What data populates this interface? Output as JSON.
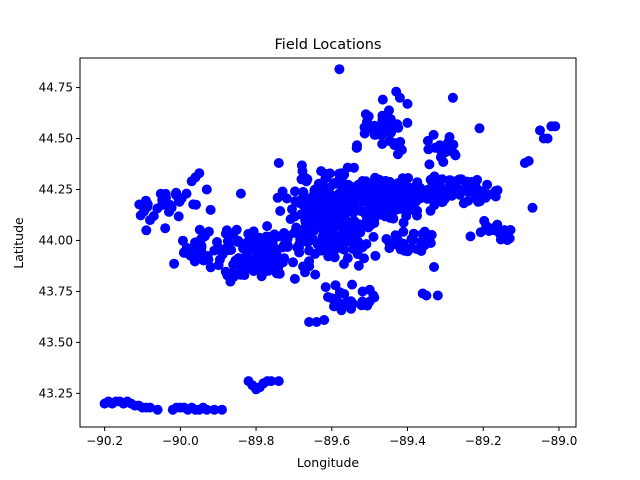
{
  "chart_data": {
    "type": "scatter",
    "title": "Field Locations",
    "xlabel": "Longitude",
    "ylabel": "Latitude",
    "xlim": [
      -90.265,
      -88.955
    ],
    "ylim": [
      43.085,
      44.895
    ],
    "xticks": [
      -90.2,
      -90.0,
      -89.8,
      -89.6,
      -89.4,
      -89.2,
      -89.0
    ],
    "xtick_labels": [
      "−90.2",
      "−90.0",
      "−89.8",
      "−89.6",
      "−89.4",
      "−89.2",
      "−89.0"
    ],
    "yticks": [
      43.25,
      43.5,
      43.75,
      44.0,
      44.25,
      44.5,
      44.75
    ],
    "ytick_labels": [
      "43.25",
      "43.50",
      "43.75",
      "44.00",
      "44.25",
      "44.50",
      "44.75"
    ],
    "grid": false,
    "marker_color": "#0000ff",
    "clusters": [
      {
        "center": [
          -89.6,
          44.12
        ],
        "spread": [
          0.09,
          0.16
        ],
        "n": 300
      },
      {
        "center": [
          -89.45,
          44.2
        ],
        "spread": [
          0.08,
          0.09
        ],
        "n": 160
      },
      {
        "center": [
          -89.27,
          44.25
        ],
        "spread": [
          0.08,
          0.06
        ],
        "n": 90
      },
      {
        "center": [
          -89.78,
          43.93
        ],
        "spread": [
          0.12,
          0.12
        ],
        "n": 130
      },
      {
        "center": [
          -89.47,
          44.55
        ],
        "spread": [
          0.06,
          0.08
        ],
        "n": 50
      },
      {
        "center": [
          -89.3,
          44.45
        ],
        "spread": [
          0.04,
          0.05
        ],
        "n": 20
      },
      {
        "center": [
          -89.95,
          43.95
        ],
        "spread": [
          0.05,
          0.07
        ],
        "n": 40
      },
      {
        "center": [
          -90.03,
          44.18
        ],
        "spread": [
          0.06,
          0.05
        ],
        "n": 30
      },
      {
        "center": [
          -89.55,
          43.72
        ],
        "spread": [
          0.05,
          0.05
        ],
        "n": 25
      },
      {
        "center": [
          -89.39,
          44.0
        ],
        "spread": [
          0.06,
          0.05
        ],
        "n": 30
      },
      {
        "center": [
          -89.18,
          44.05
        ],
        "spread": [
          0.05,
          0.04
        ],
        "n": 15
      }
    ],
    "points": [
      [
        -90.2,
        43.2
      ],
      [
        -90.19,
        43.21
      ],
      [
        -90.18,
        43.2
      ],
      [
        -90.17,
        43.21
      ],
      [
        -90.16,
        43.21
      ],
      [
        -90.15,
        43.2
      ],
      [
        -90.14,
        43.21
      ],
      [
        -90.13,
        43.2
      ],
      [
        -90.12,
        43.19
      ],
      [
        -90.11,
        43.19
      ],
      [
        -90.1,
        43.18
      ],
      [
        -90.09,
        43.18
      ],
      [
        -90.08,
        43.18
      ],
      [
        -90.06,
        43.17
      ],
      [
        -90.02,
        43.17
      ],
      [
        -90.01,
        43.18
      ],
      [
        -90.0,
        43.18
      ],
      [
        -89.99,
        43.18
      ],
      [
        -89.98,
        43.17
      ],
      [
        -89.97,
        43.18
      ],
      [
        -89.96,
        43.17
      ],
      [
        -89.95,
        43.17
      ],
      [
        -89.94,
        43.18
      ],
      [
        -89.93,
        43.17
      ],
      [
        -89.91,
        43.17
      ],
      [
        -89.89,
        43.17
      ],
      [
        -89.82,
        43.31
      ],
      [
        -89.81,
        43.29
      ],
      [
        -89.8,
        43.27
      ],
      [
        -89.79,
        43.28
      ],
      [
        -89.78,
        43.3
      ],
      [
        -89.77,
        43.31
      ],
      [
        -89.76,
        43.31
      ],
      [
        -89.74,
        43.31
      ],
      [
        -89.58,
        44.84
      ],
      [
        -89.43,
        44.73
      ],
      [
        -89.42,
        44.7
      ],
      [
        -89.4,
        44.67
      ],
      [
        -89.28,
        44.7
      ],
      [
        -89.21,
        44.55
      ],
      [
        -89.05,
        44.54
      ],
      [
        -89.04,
        44.5
      ],
      [
        -89.03,
        44.5
      ],
      [
        -89.02,
        44.56
      ],
      [
        -89.01,
        44.56
      ],
      [
        -89.07,
        44.16
      ],
      [
        -89.09,
        44.38
      ],
      [
        -89.08,
        44.39
      ],
      [
        -89.13,
        44.01
      ],
      [
        -89.14,
        44.02
      ],
      [
        -89.62,
        43.61
      ],
      [
        -89.64,
        43.6
      ],
      [
        -89.66,
        43.6
      ],
      [
        -89.52,
        43.69
      ],
      [
        -89.5,
        43.7
      ],
      [
        -89.49,
        43.73
      ],
      [
        -89.36,
        43.74
      ],
      [
        -89.35,
        43.73
      ],
      [
        -89.32,
        43.73
      ],
      [
        -89.33,
        43.87
      ],
      [
        -90.09,
        44.05
      ],
      [
        -90.08,
        44.1
      ],
      [
        -90.07,
        44.12
      ],
      [
        -90.04,
        44.06
      ],
      [
        -90.03,
        44.14
      ],
      [
        -89.97,
        44.29
      ],
      [
        -89.96,
        44.31
      ],
      [
        -89.95,
        44.33
      ],
      [
        -89.93,
        44.25
      ],
      [
        -89.92,
        44.15
      ],
      [
        -89.84,
        44.23
      ],
      [
        -89.74,
        44.38
      ],
      [
        -89.73,
        44.24
      ],
      [
        -89.68,
        44.3
      ]
    ]
  }
}
